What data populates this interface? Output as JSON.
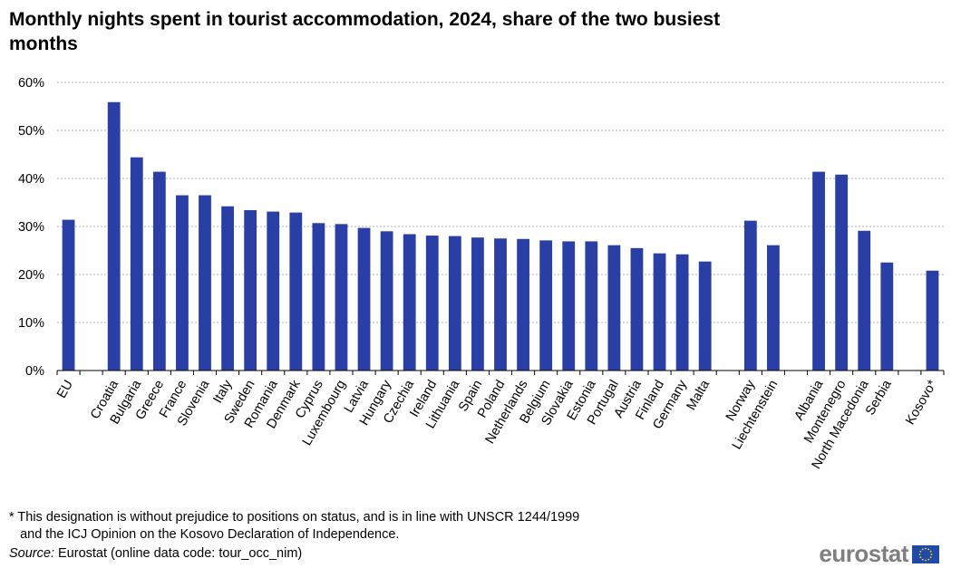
{
  "title": "Monthly nights spent in tourist accommodation, 2024, share of the two busiest months",
  "footnote": "* This designation is without prejudice to positions on status, and is in line with UNSCR 1244/1999\n   and the ICJ Opinion on the Kosovo Declaration of Independence.",
  "source": {
    "label": "Source:",
    "text": "Eurostat (online data code: tour_occ_nim)"
  },
  "logo": {
    "text": "eurostat"
  },
  "chart_data": {
    "type": "bar",
    "categories": [
      "EU",
      "",
      "Croatia",
      "Bulgaria",
      "Greece",
      "France",
      "Slovenia",
      "Italy",
      "Sweden",
      "Romania",
      "Denmark",
      "Cyprus",
      "Luxembourg",
      "Latvia",
      "Hungary",
      "Czechia",
      "Ireland",
      "Lithuania",
      "Spain",
      "Poland",
      "Netherlands",
      "Belgium",
      "Slovakia",
      "Estonia",
      "Portugal",
      "Austria",
      "Finland",
      "Germany",
      "Malta",
      "",
      "Norway",
      "Liechtenstein",
      "",
      "Albania",
      "Montenegro",
      "North Macedonia",
      "Serbia",
      "",
      "Kosovo*"
    ],
    "values": [
      31.4,
      null,
      55.9,
      44.4,
      41.4,
      36.5,
      36.5,
      34.2,
      33.4,
      33.1,
      32.9,
      30.7,
      30.5,
      29.7,
      29.0,
      28.4,
      28.1,
      28.0,
      27.7,
      27.5,
      27.4,
      27.1,
      26.9,
      26.9,
      26.1,
      25.5,
      24.4,
      24.2,
      22.7,
      null,
      31.2,
      26.1,
      null,
      41.4,
      40.8,
      29.1,
      22.5,
      null,
      20.8
    ],
    "y_ticks": [
      "0%",
      "10%",
      "20%",
      "30%",
      "40%",
      "50%",
      "60%"
    ],
    "ylim": [
      0,
      60
    ],
    "grid": true,
    "bar_color": "#2a3fa6"
  }
}
